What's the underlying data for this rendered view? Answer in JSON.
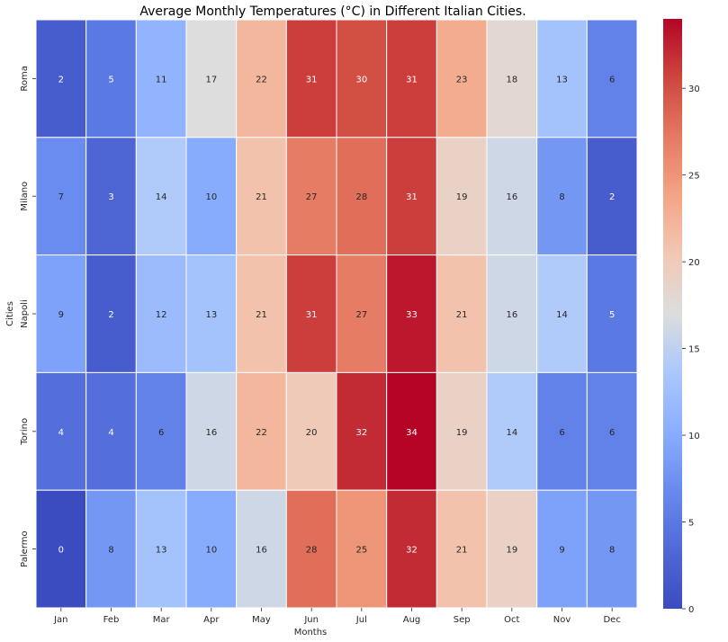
{
  "chart_data": {
    "type": "heatmap",
    "title": "Average Monthly Temperatures (°C) in Different Italian Cities.",
    "xlabel": "Months",
    "ylabel": "Cities",
    "x_categories": [
      "Jan",
      "Feb",
      "Mar",
      "Apr",
      "May",
      "Jun",
      "Jul",
      "Aug",
      "Sep",
      "Oct",
      "Nov",
      "Dec"
    ],
    "y_categories": [
      "Roma",
      "Milano",
      "Napoli",
      "Torino",
      "Palermo"
    ],
    "values": [
      [
        2,
        5,
        11,
        17,
        22,
        31,
        30,
        31,
        23,
        18,
        13,
        6
      ],
      [
        7,
        3,
        14,
        10,
        21,
        27,
        28,
        31,
        19,
        16,
        8,
        2
      ],
      [
        9,
        2,
        12,
        13,
        21,
        31,
        27,
        33,
        21,
        16,
        14,
        5
      ],
      [
        4,
        4,
        6,
        16,
        22,
        20,
        32,
        34,
        19,
        14,
        6,
        6
      ],
      [
        0,
        8,
        13,
        10,
        16,
        28,
        25,
        32,
        21,
        19,
        9,
        8
      ]
    ],
    "colormap": "coolwarm",
    "vmin": 0,
    "vmax": 34,
    "colorbar_ticks": [
      0,
      5,
      10,
      15,
      20,
      25,
      30
    ],
    "annotations": true,
    "cell_border_color": "#ffffff"
  }
}
